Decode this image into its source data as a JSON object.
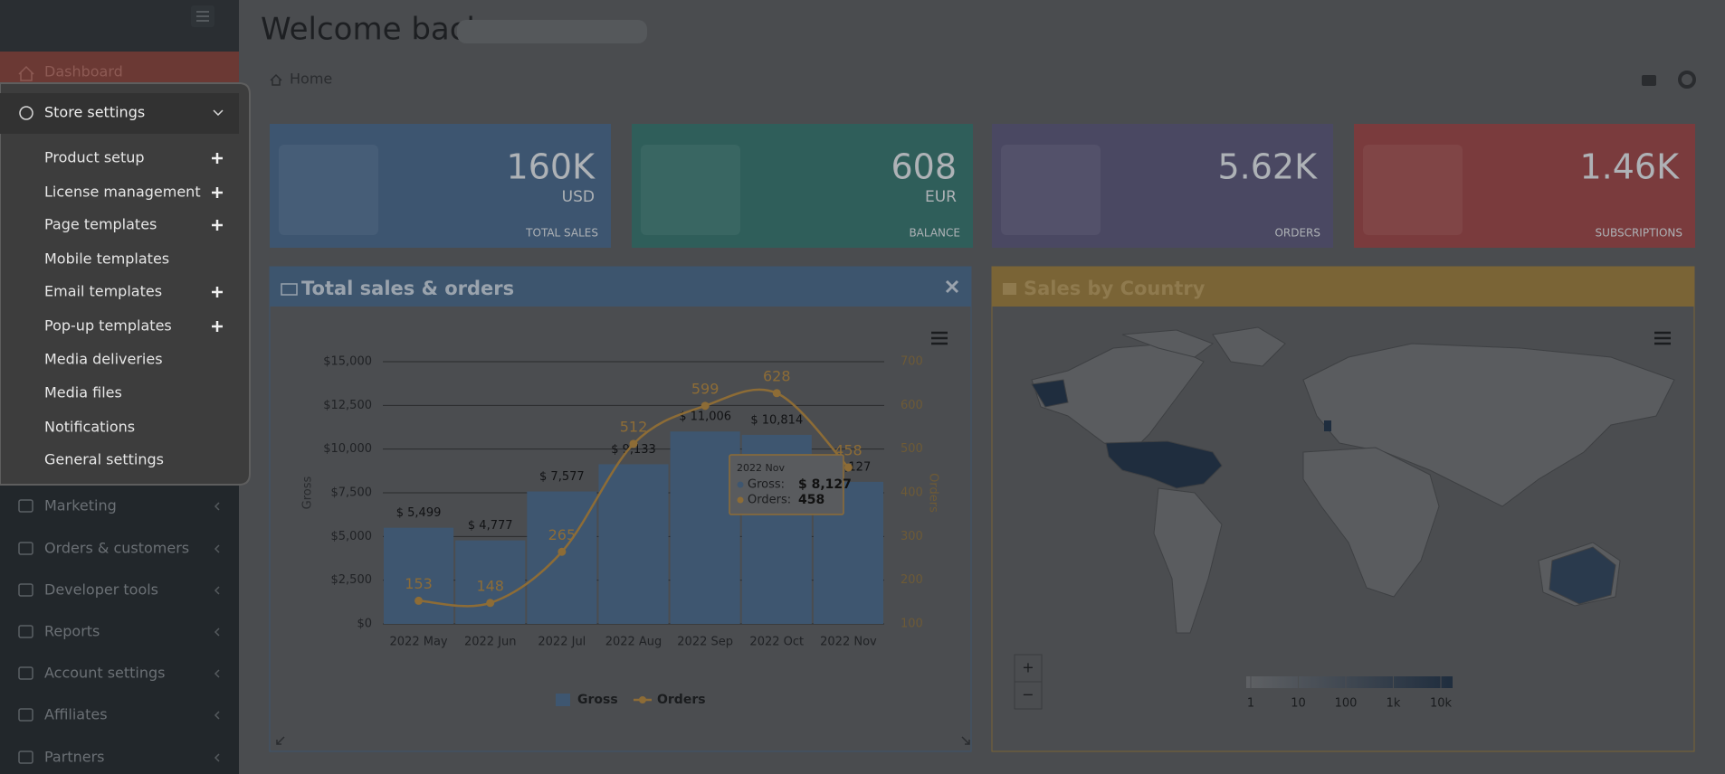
{
  "sidebar": {
    "top_item": "Dashboard",
    "menu": {
      "title": "Store settings",
      "items": [
        {
          "label": "Product setup",
          "expandable": true
        },
        {
          "label": "License management",
          "expandable": true
        },
        {
          "label": "Page templates",
          "expandable": true
        },
        {
          "label": "Mobile templates",
          "expandable": false
        },
        {
          "label": "Email templates",
          "expandable": true
        },
        {
          "label": "Pop-up templates",
          "expandable": true
        },
        {
          "label": "Media deliveries",
          "expandable": false
        },
        {
          "label": "Media files",
          "expandable": false
        },
        {
          "label": "Notifications",
          "expandable": false
        },
        {
          "label": "General settings",
          "expandable": false
        }
      ]
    },
    "items": [
      "Marketing",
      "Orders & customers",
      "Developer tools",
      "Reports",
      "Account settings",
      "Affiliates",
      "Partners"
    ]
  },
  "header": {
    "greeting": "Welcome back,",
    "breadcrumb": "Home"
  },
  "stat_cards": [
    {
      "value": "160K",
      "unit": "USD",
      "label": "TOTAL SALES",
      "color": "#3d5570"
    },
    {
      "value": "608",
      "unit": "EUR",
      "label": "BALANCE",
      "color": "#2f5e5a"
    },
    {
      "value": "5.62K",
      "label": "ORDERS",
      "color": "#4a4862"
    },
    {
      "value": "1.46K",
      "label": "SUBSCRIPTIONS",
      "color": "#7a3b3d"
    }
  ],
  "chart_panel": {
    "title": "Total sales & orders"
  },
  "chart_data": {
    "type": "bar",
    "categories": [
      "2022 May",
      "2022 Jun",
      "2022 Jul",
      "2022 Aug",
      "2022 Sep",
      "2022 Oct",
      "2022 Nov"
    ],
    "series": [
      {
        "name": "Gross",
        "type": "bar",
        "color": "#3e5670",
        "values": [
          5499,
          4777,
          7577,
          9133,
          11006,
          10814,
          8127
        ],
        "value_labels": [
          "$ 5,499",
          "$ 4,777",
          "$ 7,577",
          "$ 9,133",
          "$ 11,006",
          "$ 10,814",
          "$ 8,127"
        ]
      },
      {
        "name": "Orders",
        "type": "line",
        "axis": "y2",
        "color": "#8d6c36",
        "values": [
          153,
          148,
          265,
          512,
          599,
          628,
          458
        ]
      }
    ],
    "ylabel": "Gross",
    "y2label": "Orders",
    "ylim": [
      0,
      15000
    ],
    "yticks": [
      {
        "value": 0,
        "label": "$0"
      },
      {
        "value": 2500,
        "label": "$2,500"
      },
      {
        "value": 5000,
        "label": "$5,000"
      },
      {
        "value": 7500,
        "label": "$7,500"
      },
      {
        "value": 10000,
        "label": "$10,000"
      },
      {
        "value": 12500,
        "label": "$12,500"
      },
      {
        "value": 15000,
        "label": "$15,000"
      }
    ],
    "y2lim": [
      100,
      700
    ],
    "y2ticks": [
      100,
      200,
      300,
      400,
      500,
      600,
      700
    ],
    "grid": true,
    "legend": "bottom",
    "tooltip": {
      "index": 6,
      "series_labels": [
        "Gross:",
        "Orders:"
      ]
    }
  },
  "map_panel": {
    "title": "Sales by Country",
    "legend_labels": [
      "1",
      "10",
      "100",
      "1k",
      "10k"
    ],
    "zoom_in": "+",
    "zoom_out": "−"
  }
}
